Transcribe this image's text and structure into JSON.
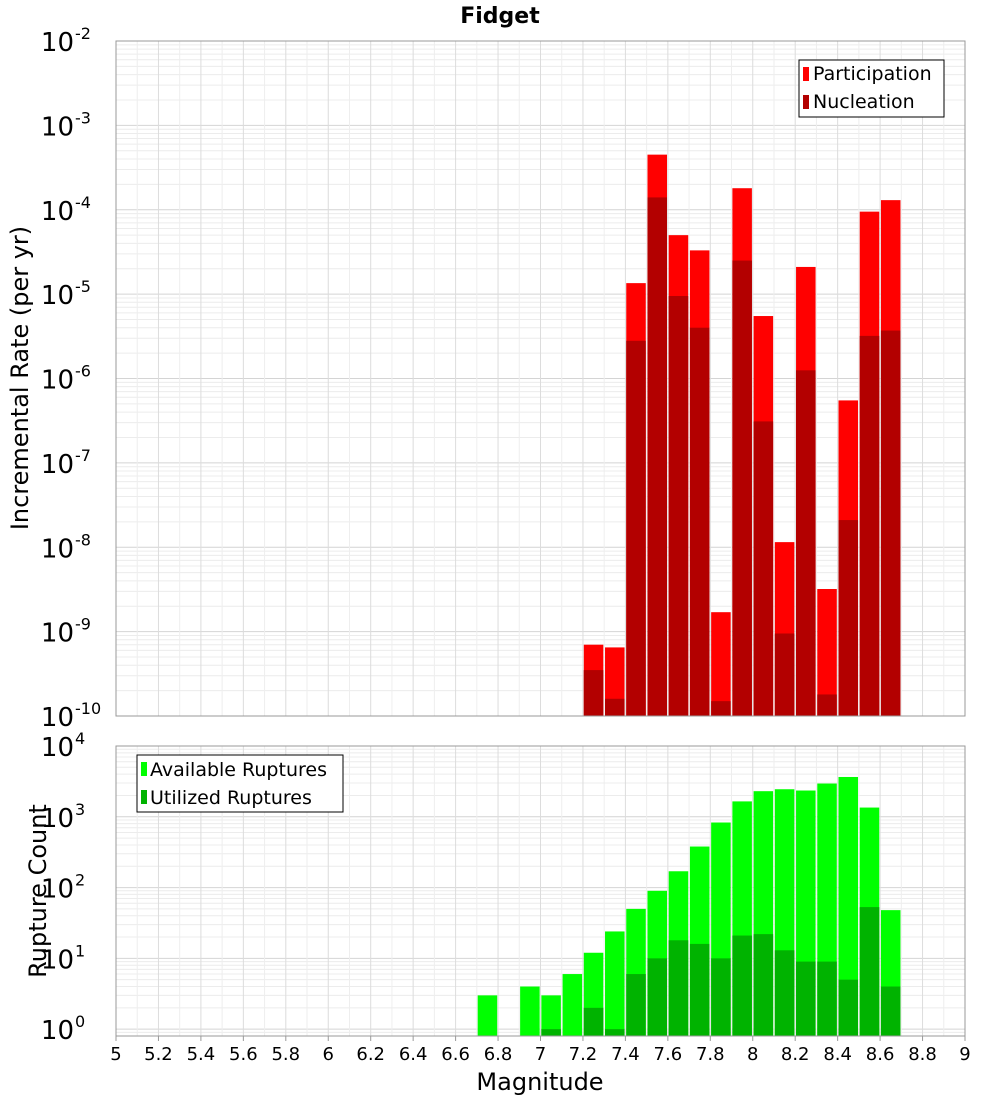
{
  "chart_data": [
    {
      "type": "bar",
      "title": "Fidget",
      "xlabel": "",
      "ylabel": "Incremental Rate (per yr)",
      "scale": "log",
      "xlim": [
        5,
        9
      ],
      "ylim": [
        1e-10,
        0.01
      ],
      "grid": true,
      "legend": "top-right",
      "y_ticks": [
        {
          "base": "10",
          "exp": "-10",
          "value": 1e-10
        },
        {
          "base": "10",
          "exp": "-9",
          "value": 1e-09
        },
        {
          "base": "10",
          "exp": "-8",
          "value": 1e-08
        },
        {
          "base": "10",
          "exp": "-7",
          "value": 1e-07
        },
        {
          "base": "10",
          "exp": "-6",
          "value": 1e-06
        },
        {
          "base": "10",
          "exp": "-5",
          "value": 1e-05
        },
        {
          "base": "10",
          "exp": "-4",
          "value": 0.0001
        },
        {
          "base": "10",
          "exp": "-3",
          "value": 0.001
        },
        {
          "base": "10",
          "exp": "-2",
          "value": 0.01
        }
      ],
      "x": [
        7.25,
        7.35,
        7.45,
        7.55,
        7.65,
        7.75,
        7.85,
        7.95,
        8.05,
        8.15,
        8.25,
        8.35,
        8.45,
        8.55,
        8.65
      ],
      "series": [
        {
          "name": "Participation",
          "color": "#ff0000",
          "values": [
            7e-10,
            6.5e-10,
            1.35e-05,
            0.00045,
            5e-05,
            3.3e-05,
            1.7e-09,
            0.00018,
            5.5e-06,
            1.15e-08,
            2.1e-05,
            3.2e-09,
            5.5e-07,
            9.5e-05,
            0.00013
          ]
        },
        {
          "name": "Nucleation",
          "color": "#b30000",
          "values": [
            3.5e-10,
            1.6e-10,
            2.8e-06,
            0.00014,
            9.5e-06,
            4e-06,
            1.5e-10,
            2.5e-05,
            3.1e-07,
            9.5e-10,
            1.25e-06,
            1.8e-10,
            2.1e-08,
            3.2e-06,
            3.7e-06
          ]
        }
      ]
    },
    {
      "type": "bar",
      "xlabel": "Magnitude",
      "ylabel": "Rupture Count",
      "scale": "log",
      "xlim": [
        5,
        9
      ],
      "ylim": [
        0.8,
        10000
      ],
      "grid": true,
      "legend": "top-left",
      "x_ticks": [
        "5",
        "5.2",
        "5.4",
        "5.6",
        "5.8",
        "6",
        "6.2",
        "6.4",
        "6.6",
        "6.8",
        "7",
        "7.2",
        "7.4",
        "7.6",
        "7.8",
        "8",
        "8.2",
        "8.4",
        "8.6",
        "8.8",
        "9"
      ],
      "y_ticks": [
        {
          "base": "10",
          "exp": "0",
          "value": 1
        },
        {
          "base": "10",
          "exp": "1",
          "value": 10
        },
        {
          "base": "10",
          "exp": "2",
          "value": 100
        },
        {
          "base": "10",
          "exp": "3",
          "value": 1000
        },
        {
          "base": "10",
          "exp": "4",
          "value": 10000
        }
      ],
      "x": [
        6.75,
        6.95,
        7.05,
        7.15,
        7.25,
        7.35,
        7.45,
        7.55,
        7.65,
        7.75,
        7.85,
        7.95,
        8.05,
        8.15,
        8.25,
        8.35,
        8.45,
        8.55,
        8.65
      ],
      "series": [
        {
          "name": "Available Ruptures",
          "color": "#00ff00",
          "values": [
            3,
            4,
            3,
            6,
            12,
            24,
            50,
            90,
            170,
            380,
            830,
            1650,
            2300,
            2450,
            2350,
            2950,
            3650,
            1350,
            48
          ]
        },
        {
          "name": "Utilized Ruptures",
          "color": "#00b300",
          "values": [
            null,
            null,
            1,
            null,
            2,
            1,
            6,
            10,
            18,
            16,
            10,
            21,
            22,
            13,
            9,
            9,
            5,
            53,
            4
          ]
        }
      ]
    }
  ]
}
